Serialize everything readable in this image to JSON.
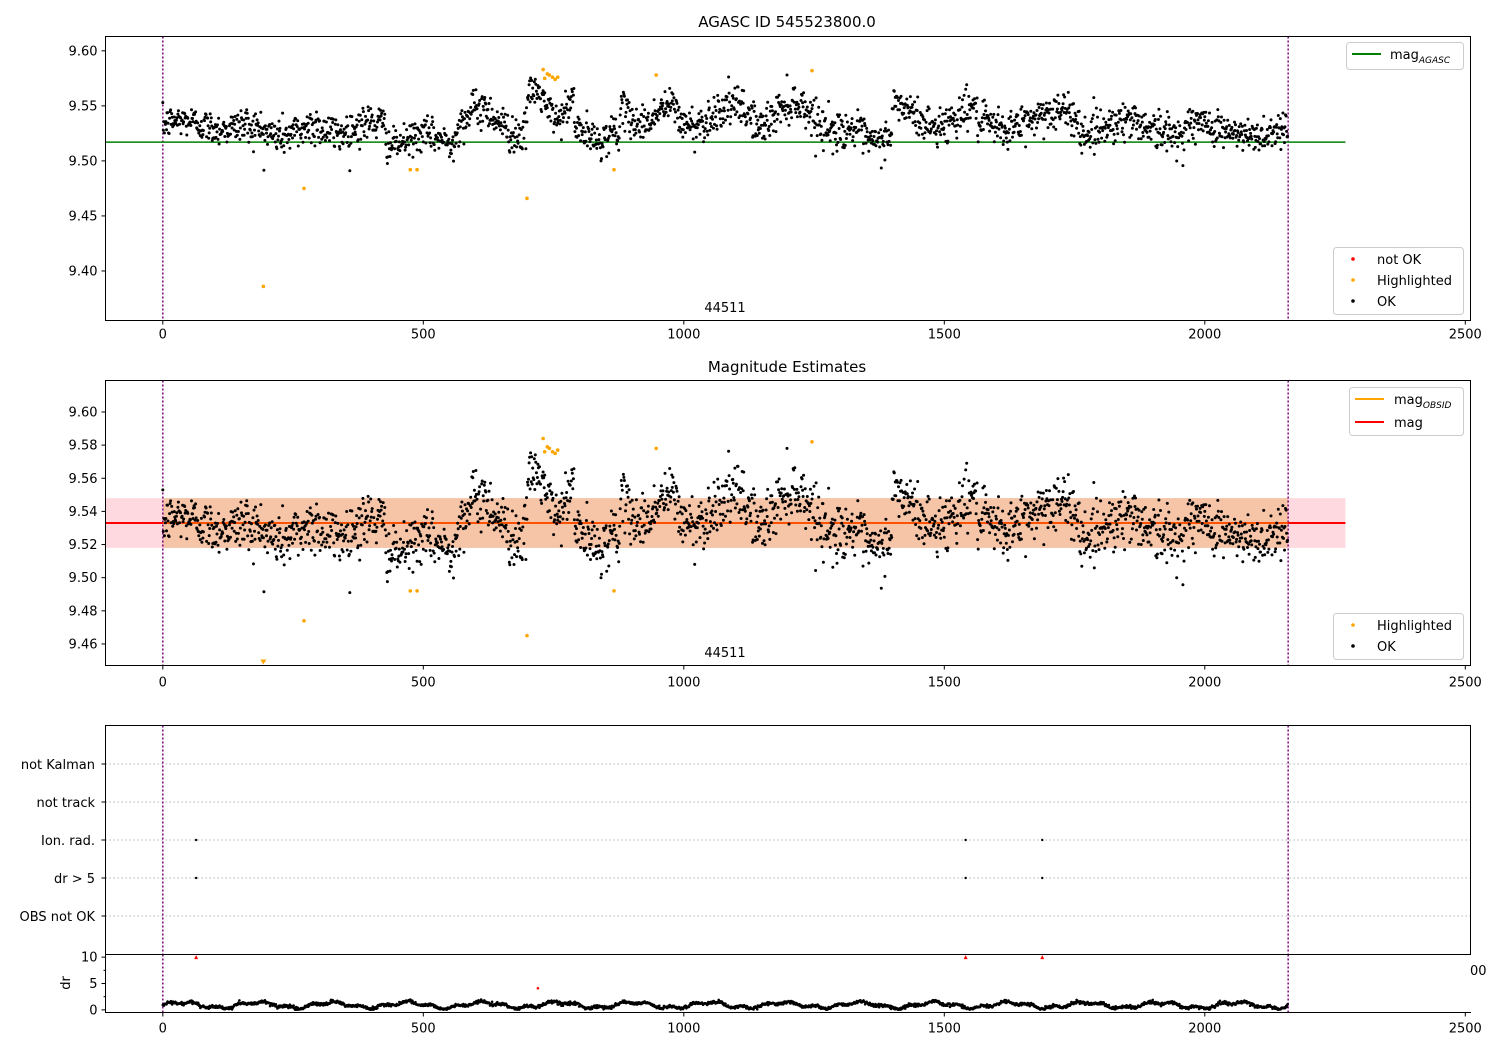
{
  "panel1": {
    "title": "AGASC ID 545523800.0",
    "obsid_label": "44511",
    "legend_top": [
      {
        "label": "mag",
        "sub": "AGASC",
        "color": "#008000"
      }
    ],
    "legend_bottom": [
      {
        "label": "not OK",
        "color": "#ff0000"
      },
      {
        "label": "Highlighted",
        "color": "#ffa500"
      },
      {
        "label": "OK",
        "color": "#000000"
      }
    ]
  },
  "panel2": {
    "title": "Magnitude Estimates",
    "obsid_label": "44511",
    "legend_top": [
      {
        "label": "mag",
        "sub": "OBSID",
        "color": "#ffa500"
      },
      {
        "label": "mag",
        "sub": "",
        "color": "#ff0000"
      }
    ],
    "legend_bottom": [
      {
        "label": "Highlighted",
        "color": "#ffa500"
      },
      {
        "label": "OK",
        "color": "#000000"
      }
    ]
  },
  "panel3": {
    "flag_labels": [
      "not Kalman",
      "not track",
      "Ion. rad.",
      "dr > 5",
      "OBS not OK"
    ],
    "dr_ylabel": "dr",
    "stray_tick": "00"
  },
  "chart_data": [
    {
      "type": "scatter",
      "title": "AGASC ID 545523800.0",
      "xlim": [
        -110,
        2510
      ],
      "ylim": [
        9.355,
        9.613
      ],
      "xticks": [
        0,
        500,
        1000,
        1500,
        2000,
        2500
      ],
      "yticks": [
        9.4,
        9.45,
        9.5,
        9.55,
        9.6
      ],
      "ytick_labels": [
        "9.40",
        "9.45",
        "9.50",
        "9.55",
        "9.60"
      ],
      "vlines": [
        0,
        2160
      ],
      "mag_agasc": 9.517,
      "hline_xrange": [
        -110,
        2270
      ],
      "series": [
        {
          "name": "OK",
          "color": "#000000",
          "n_points": 2160,
          "x_range": [
            0,
            2160
          ]
        },
        {
          "name": "Highlighted",
          "color": "#ffa500",
          "x": [
            193,
            271,
            475,
            488,
            699,
            730,
            733,
            738,
            742,
            748,
            753,
            758,
            866,
            947,
            1246
          ],
          "y": [
            9.386,
            9.475,
            9.492,
            9.492,
            9.466,
            9.583,
            9.575,
            9.579,
            9.578,
            9.576,
            9.574,
            9.576,
            9.492,
            9.578,
            9.582
          ]
        }
      ],
      "segments": [
        {
          "x0": 0,
          "x1": 150,
          "base": 9.533,
          "amp": 0.004,
          "noise": 0.009
        },
        {
          "x0": 150,
          "x1": 300,
          "base": 9.528,
          "amp": 0.005,
          "noise": 0.011
        },
        {
          "x0": 300,
          "x1": 430,
          "base": 9.53,
          "amp": 0.005,
          "noise": 0.011
        },
        {
          "x0": 430,
          "x1": 560,
          "base": 9.519,
          "amp": 0.005,
          "noise": 0.009
        },
        {
          "x0": 560,
          "x1": 700,
          "base": 9.536,
          "amp": 0.012,
          "noise": 0.011
        },
        {
          "x0": 700,
          "x1": 790,
          "base": 9.551,
          "amp": 0.013,
          "noise": 0.009
        },
        {
          "x0": 790,
          "x1": 880,
          "base": 9.524,
          "amp": 0.006,
          "noise": 0.01
        },
        {
          "x0": 880,
          "x1": 990,
          "base": 9.542,
          "amp": 0.008,
          "noise": 0.01
        },
        {
          "x0": 990,
          "x1": 1140,
          "base": 9.541,
          "amp": 0.009,
          "noise": 0.011
        },
        {
          "x0": 1140,
          "x1": 1300,
          "base": 9.54,
          "amp": 0.013,
          "noise": 0.011
        },
        {
          "x0": 1300,
          "x1": 1400,
          "base": 9.523,
          "amp": 0.007,
          "noise": 0.01
        },
        {
          "x0": 1400,
          "x1": 1560,
          "base": 9.541,
          "amp": 0.01,
          "noise": 0.011
        },
        {
          "x0": 1560,
          "x1": 1760,
          "base": 9.537,
          "amp": 0.008,
          "noise": 0.011
        },
        {
          "x0": 1760,
          "x1": 1960,
          "base": 9.53,
          "amp": 0.007,
          "noise": 0.011
        },
        {
          "x0": 1960,
          "x1": 2160,
          "base": 9.528,
          "amp": 0.006,
          "noise": 0.01
        }
      ]
    },
    {
      "type": "scatter",
      "title": "Magnitude Estimates",
      "xlim": [
        -110,
        2510
      ],
      "ylim": [
        9.447,
        9.619
      ],
      "xticks": [
        0,
        500,
        1000,
        1500,
        2000,
        2500
      ],
      "yticks": [
        9.46,
        9.48,
        9.5,
        9.52,
        9.54,
        9.56,
        9.58,
        9.6
      ],
      "ytick_labels": [
        "9.46",
        "9.48",
        "9.50",
        "9.52",
        "9.54",
        "9.56",
        "9.58",
        "9.60"
      ],
      "vlines": [
        0,
        2160
      ],
      "mag": 9.533,
      "mag_band": [
        9.518,
        9.548
      ],
      "hline_xrange": [
        -110,
        2270
      ],
      "band_colors": {
        "obsid": "#f6c4a6",
        "mag": "#ffd9e0"
      },
      "series": [
        {
          "name": "OK",
          "color": "#000000",
          "n_points": 2160,
          "x_range": [
            0,
            2160
          ]
        },
        {
          "name": "Highlighted",
          "color": "#ffa500",
          "x": [
            193,
            271,
            475,
            488,
            699,
            730,
            733,
            738,
            742,
            748,
            753,
            758,
            866,
            947,
            1246
          ],
          "y": [
            9.45,
            9.474,
            9.492,
            9.492,
            9.465,
            9.584,
            9.576,
            9.579,
            9.578,
            9.576,
            9.575,
            9.577,
            9.492,
            9.578,
            9.582
          ]
        }
      ]
    },
    {
      "type": "scatter",
      "title": "",
      "xlim": [
        -110,
        2510
      ],
      "categories": [
        "not Kalman",
        "not track",
        "Ion. rad.",
        "dr > 5",
        "OBS not OK"
      ],
      "vlines": [
        0,
        2160
      ],
      "flag_points": {
        "Ion. rad.": [
          64,
          1541,
          1688
        ],
        "dr > 5": [
          64,
          1541,
          1688
        ]
      }
    },
    {
      "type": "scatter",
      "title": "",
      "xlim": [
        -110,
        2510
      ],
      "ylim": [
        -0.5,
        10.5
      ],
      "xticks": [
        0,
        500,
        1000,
        1500,
        2000,
        2500
      ],
      "yticks": [
        0,
        5,
        10
      ],
      "ylabel": "dr",
      "vlines": [
        0,
        2160
      ],
      "series": [
        {
          "name": "dr",
          "color": "#000000",
          "n_points": 2160,
          "x_range": [
            0,
            2160
          ],
          "typical_range": [
            0.1,
            2.3
          ]
        },
        {
          "name": "dr > 5 (clipped)",
          "color": "#ff0000",
          "marker": "triangle",
          "x": [
            64,
            1541,
            1688
          ],
          "y": [
            10,
            10,
            10
          ]
        },
        {
          "name": "outlier",
          "color": "#ff0000",
          "x": [
            720
          ],
          "y": [
            4.1
          ]
        }
      ]
    }
  ]
}
